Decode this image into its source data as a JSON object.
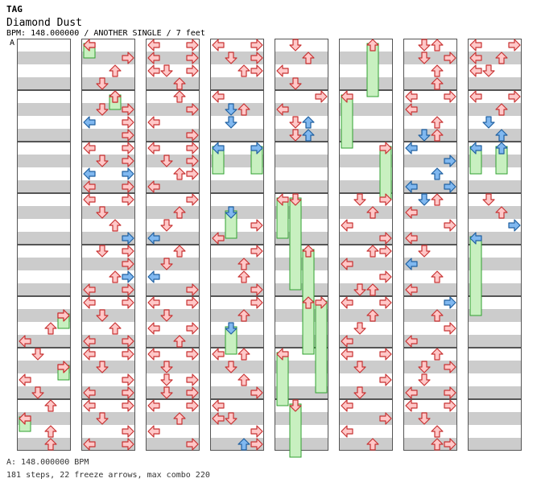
{
  "header": {
    "tag": "TAG",
    "title": "Diamond Dust",
    "subtitle": "BPM: 148.000000 / ANOTHER SINGLE / 7 feet"
  },
  "bpm_marker": "A",
  "footer": {
    "bpm_line": "A: 148.000000 BPM",
    "steps_line": "181 steps, 22 freeze arrows, max combo 220"
  },
  "colors": {
    "band_gray": "#cccccc",
    "arrow_red_fill": "#ffc8c8",
    "arrow_red_stroke": "#c83232",
    "arrow_blue_fill": "#80b8f0",
    "arrow_blue_stroke": "#2060a0",
    "freeze_fill": "#c8f0c0",
    "freeze_stroke": "#30a030"
  },
  "chart_data": {
    "type": "step-chart",
    "columns": 8,
    "measures_per_column": 8,
    "notes": [
      {
        "c": 0,
        "r": 21,
        "l": 3,
        "f": 1
      },
      {
        "c": 0,
        "r": 21,
        "l": 3
      },
      {
        "c": 0,
        "r": 22,
        "l": 2
      },
      {
        "c": 0,
        "r": 23,
        "l": 0
      },
      {
        "c": 0,
        "r": 24,
        "l": 1
      },
      {
        "c": 0,
        "r": 25,
        "l": 3,
        "f": 1
      },
      {
        "c": 0,
        "r": 25,
        "l": 3
      },
      {
        "c": 0,
        "r": 26,
        "l": 0
      },
      {
        "c": 0,
        "r": 27,
        "l": 1
      },
      {
        "c": 0,
        "r": 28,
        "l": 2
      },
      {
        "c": 0,
        "r": 29,
        "l": 0,
        "f": 1
      },
      {
        "c": 0,
        "r": 29,
        "l": 0
      },
      {
        "c": 0,
        "r": 30,
        "l": 2
      },
      {
        "c": 0,
        "r": 31,
        "l": 2
      },
      {
        "c": 1,
        "r": 0,
        "l": 0,
        "f": 1
      },
      {
        "c": 1,
        "r": 0,
        "l": 0
      },
      {
        "c": 1,
        "r": 1,
        "l": 3
      },
      {
        "c": 1,
        "r": 2,
        "l": 2
      },
      {
        "c": 1,
        "r": 3,
        "l": 1
      },
      {
        "c": 1,
        "r": 4,
        "l": 2,
        "f": 1
      },
      {
        "c": 1,
        "r": 4,
        "l": 2
      },
      {
        "c": 1,
        "r": 5,
        "l": 1
      },
      {
        "c": 1,
        "r": 5,
        "l": 3
      },
      {
        "c": 1,
        "r": 6,
        "l": 0,
        "b": 1
      },
      {
        "c": 1,
        "r": 6,
        "l": 3
      },
      {
        "c": 1,
        "r": 7,
        "l": 3
      },
      {
        "c": 1,
        "r": 8,
        "l": 0
      },
      {
        "c": 1,
        "r": 8,
        "l": 3
      },
      {
        "c": 1,
        "r": 9,
        "l": 1
      },
      {
        "c": 1,
        "r": 9,
        "l": 3
      },
      {
        "c": 1,
        "r": 10,
        "l": 0,
        "b": 1
      },
      {
        "c": 1,
        "r": 10,
        "l": 3,
        "b": 1
      },
      {
        "c": 1,
        "r": 11,
        "l": 0
      },
      {
        "c": 1,
        "r": 11,
        "l": 3
      },
      {
        "c": 1,
        "r": 12,
        "l": 0
      },
      {
        "c": 1,
        "r": 12,
        "l": 3
      },
      {
        "c": 1,
        "r": 13,
        "l": 1
      },
      {
        "c": 1,
        "r": 14,
        "l": 2
      },
      {
        "c": 1,
        "r": 15,
        "l": 3,
        "b": 1
      },
      {
        "c": 1,
        "r": 16,
        "l": 1
      },
      {
        "c": 1,
        "r": 16,
        "l": 3
      },
      {
        "c": 1,
        "r": 17,
        "l": 3
      },
      {
        "c": 1,
        "r": 18,
        "l": 2
      },
      {
        "c": 1,
        "r": 18,
        "l": 3,
        "b": 1
      },
      {
        "c": 1,
        "r": 19,
        "l": 0
      },
      {
        "c": 1,
        "r": 19,
        "l": 3
      },
      {
        "c": 1,
        "r": 20,
        "l": 0
      },
      {
        "c": 1,
        "r": 20,
        "l": 3
      },
      {
        "c": 1,
        "r": 21,
        "l": 1
      },
      {
        "c": 1,
        "r": 22,
        "l": 2
      },
      {
        "c": 1,
        "r": 23,
        "l": 0
      },
      {
        "c": 1,
        "r": 23,
        "l": 3
      },
      {
        "c": 1,
        "r": 24,
        "l": 0
      },
      {
        "c": 1,
        "r": 24,
        "l": 3
      },
      {
        "c": 1,
        "r": 25,
        "l": 1
      },
      {
        "c": 1,
        "r": 26,
        "l": 3
      },
      {
        "c": 1,
        "r": 27,
        "l": 0
      },
      {
        "c": 1,
        "r": 27,
        "l": 3
      },
      {
        "c": 1,
        "r": 28,
        "l": 0
      },
      {
        "c": 1,
        "r": 28,
        "l": 3
      },
      {
        "c": 1,
        "r": 29,
        "l": 1
      },
      {
        "c": 1,
        "r": 30,
        "l": 3
      },
      {
        "c": 1,
        "r": 31,
        "l": 0
      },
      {
        "c": 1,
        "r": 31,
        "l": 3
      },
      {
        "c": 2,
        "r": 0,
        "l": 0
      },
      {
        "c": 2,
        "r": 0,
        "l": 3
      },
      {
        "c": 2,
        "r": 1,
        "l": 0
      },
      {
        "c": 2,
        "r": 1,
        "l": 3
      },
      {
        "c": 2,
        "r": 2,
        "l": 0
      },
      {
        "c": 2,
        "r": 2,
        "l": 1
      },
      {
        "c": 2,
        "r": 2,
        "l": 3
      },
      {
        "c": 2,
        "r": 3,
        "l": 2
      },
      {
        "c": 2,
        "r": 4,
        "l": 2
      },
      {
        "c": 2,
        "r": 5,
        "l": 3
      },
      {
        "c": 2,
        "r": 6,
        "l": 0
      },
      {
        "c": 2,
        "r": 7,
        "l": 3
      },
      {
        "c": 2,
        "r": 8,
        "l": 0
      },
      {
        "c": 2,
        "r": 8,
        "l": 3
      },
      {
        "c": 2,
        "r": 9,
        "l": 1
      },
      {
        "c": 2,
        "r": 9,
        "l": 3
      },
      {
        "c": 2,
        "r": 10,
        "l": 2
      },
      {
        "c": 2,
        "r": 10,
        "l": 3
      },
      {
        "c": 2,
        "r": 11,
        "l": 0
      },
      {
        "c": 2,
        "r": 12,
        "l": 3
      },
      {
        "c": 2,
        "r": 13,
        "l": 2
      },
      {
        "c": 2,
        "r": 14,
        "l": 1
      },
      {
        "c": 2,
        "r": 15,
        "l": 0,
        "b": 1
      },
      {
        "c": 2,
        "r": 16,
        "l": 2
      },
      {
        "c": 2,
        "r": 17,
        "l": 1
      },
      {
        "c": 2,
        "r": 18,
        "l": 0,
        "b": 1
      },
      {
        "c": 2,
        "r": 19,
        "l": 3
      },
      {
        "c": 2,
        "r": 20,
        "l": 0
      },
      {
        "c": 2,
        "r": 20,
        "l": 3
      },
      {
        "c": 2,
        "r": 21,
        "l": 1
      },
      {
        "c": 2,
        "r": 22,
        "l": 0
      },
      {
        "c": 2,
        "r": 22,
        "l": 3
      },
      {
        "c": 2,
        "r": 23,
        "l": 2
      },
      {
        "c": 2,
        "r": 24,
        "l": 0
      },
      {
        "c": 2,
        "r": 24,
        "l": 3
      },
      {
        "c": 2,
        "r": 25,
        "l": 1
      },
      {
        "c": 2,
        "r": 26,
        "l": 1
      },
      {
        "c": 2,
        "r": 26,
        "l": 3
      },
      {
        "c": 2,
        "r": 27,
        "l": 1
      },
      {
        "c": 2,
        "r": 27,
        "l": 3
      },
      {
        "c": 2,
        "r": 28,
        "l": 0
      },
      {
        "c": 2,
        "r": 28,
        "l": 3
      },
      {
        "c": 2,
        "r": 29,
        "l": 2
      },
      {
        "c": 2,
        "r": 30,
        "l": 0
      },
      {
        "c": 2,
        "r": 31,
        "l": 3
      },
      {
        "c": 3,
        "r": 0,
        "l": 0
      },
      {
        "c": 3,
        "r": 0,
        "l": 3
      },
      {
        "c": 3,
        "r": 1,
        "l": 1
      },
      {
        "c": 3,
        "r": 1,
        "l": 3
      },
      {
        "c": 3,
        "r": 2,
        "l": 2
      },
      {
        "c": 3,
        "r": 2,
        "l": 3
      },
      {
        "c": 3,
        "r": 4,
        "l": 0
      },
      {
        "c": 3,
        "r": 5,
        "l": 2
      },
      {
        "c": 3,
        "r": 5,
        "l": 1,
        "b": 1
      },
      {
        "c": 3,
        "r": 6,
        "l": 1,
        "b": 1
      },
      {
        "c": 3,
        "r": 8,
        "l": 0,
        "f": 2,
        "b": 1
      },
      {
        "c": 3,
        "r": 8,
        "l": 3,
        "f": 2,
        "b": 1
      },
      {
        "c": 3,
        "r": 13,
        "l": 1,
        "f": 2,
        "b": 1
      },
      {
        "c": 3,
        "r": 14,
        "l": 3
      },
      {
        "c": 3,
        "r": 15,
        "l": 0
      },
      {
        "c": 3,
        "r": 16,
        "l": 3
      },
      {
        "c": 3,
        "r": 17,
        "l": 2
      },
      {
        "c": 3,
        "r": 18,
        "l": 2
      },
      {
        "c": 3,
        "r": 19,
        "l": 3
      },
      {
        "c": 3,
        "r": 20,
        "l": 3
      },
      {
        "c": 3,
        "r": 21,
        "l": 2
      },
      {
        "c": 3,
        "r": 22,
        "l": 1,
        "f": 2,
        "b": 1
      },
      {
        "c": 3,
        "r": 24,
        "l": 0
      },
      {
        "c": 3,
        "r": 24,
        "l": 2
      },
      {
        "c": 3,
        "r": 25,
        "l": 1
      },
      {
        "c": 3,
        "r": 26,
        "l": 2
      },
      {
        "c": 3,
        "r": 27,
        "l": 3
      },
      {
        "c": 3,
        "r": 28,
        "l": 0
      },
      {
        "c": 3,
        "r": 29,
        "l": 0
      },
      {
        "c": 3,
        "r": 29,
        "l": 1
      },
      {
        "c": 3,
        "r": 30,
        "l": 3
      },
      {
        "c": 3,
        "r": 31,
        "l": 2,
        "b": 1
      },
      {
        "c": 3,
        "r": 31,
        "l": 3
      },
      {
        "c": 4,
        "r": 0,
        "l": 1
      },
      {
        "c": 4,
        "r": 1,
        "l": 2
      },
      {
        "c": 4,
        "r": 2,
        "l": 0
      },
      {
        "c": 4,
        "r": 3,
        "l": 1
      },
      {
        "c": 4,
        "r": 4,
        "l": 3
      },
      {
        "c": 4,
        "r": 5,
        "l": 0
      },
      {
        "c": 4,
        "r": 6,
        "l": 1
      },
      {
        "c": 4,
        "r": 6,
        "l": 2,
        "b": 1
      },
      {
        "c": 4,
        "r": 7,
        "l": 1
      },
      {
        "c": 4,
        "r": 7,
        "l": 2,
        "b": 1
      },
      {
        "c": 4,
        "r": 12,
        "l": 0,
        "f": 3
      },
      {
        "c": 4,
        "r": 12,
        "l": 1,
        "f": 7
      },
      {
        "c": 4,
        "r": 16,
        "l": 2,
        "f": 4
      },
      {
        "c": 4,
        "r": 20,
        "l": 2,
        "f": 4
      },
      {
        "c": 4,
        "r": 20,
        "l": 3,
        "f": 7
      },
      {
        "c": 4,
        "r": 24,
        "l": 0,
        "f": 4
      },
      {
        "c": 4,
        "r": 28,
        "l": 1,
        "f": 4
      },
      {
        "c": 5,
        "r": 0,
        "l": 2,
        "f": 4
      },
      {
        "c": 5,
        "r": 4,
        "l": 0,
        "f": 4
      },
      {
        "c": 5,
        "r": 8,
        "l": 3,
        "f": 4
      },
      {
        "c": 5,
        "r": 12,
        "l": 1
      },
      {
        "c": 5,
        "r": 12,
        "l": 3
      },
      {
        "c": 5,
        "r": 13,
        "l": 2
      },
      {
        "c": 5,
        "r": 14,
        "l": 0
      },
      {
        "c": 5,
        "r": 15,
        "l": 3
      },
      {
        "c": 5,
        "r": 16,
        "l": 2
      },
      {
        "c": 5,
        "r": 16,
        "l": 3
      },
      {
        "c": 5,
        "r": 17,
        "l": 0
      },
      {
        "c": 5,
        "r": 18,
        "l": 3
      },
      {
        "c": 5,
        "r": 19,
        "l": 1
      },
      {
        "c": 5,
        "r": 19,
        "l": 2
      },
      {
        "c": 5,
        "r": 20,
        "l": 0
      },
      {
        "c": 5,
        "r": 20,
        "l": 3
      },
      {
        "c": 5,
        "r": 21,
        "l": 2
      },
      {
        "c": 5,
        "r": 22,
        "l": 1
      },
      {
        "c": 5,
        "r": 23,
        "l": 0
      },
      {
        "c": 5,
        "r": 24,
        "l": 0
      },
      {
        "c": 5,
        "r": 24,
        "l": 3
      },
      {
        "c": 5,
        "r": 25,
        "l": 1
      },
      {
        "c": 5,
        "r": 26,
        "l": 3
      },
      {
        "c": 5,
        "r": 27,
        "l": 1
      },
      {
        "c": 5,
        "r": 28,
        "l": 0
      },
      {
        "c": 5,
        "r": 29,
        "l": 3
      },
      {
        "c": 5,
        "r": 30,
        "l": 0
      },
      {
        "c": 5,
        "r": 31,
        "l": 2
      },
      {
        "c": 6,
        "r": 0,
        "l": 1
      },
      {
        "c": 6,
        "r": 0,
        "l": 2
      },
      {
        "c": 6,
        "r": 1,
        "l": 1
      },
      {
        "c": 6,
        "r": 1,
        "l": 3
      },
      {
        "c": 6,
        "r": 2,
        "l": 2
      },
      {
        "c": 6,
        "r": 3,
        "l": 2
      },
      {
        "c": 6,
        "r": 4,
        "l": 0
      },
      {
        "c": 6,
        "r": 4,
        "l": 3
      },
      {
        "c": 6,
        "r": 5,
        "l": 0
      },
      {
        "c": 6,
        "r": 6,
        "l": 2
      },
      {
        "c": 6,
        "r": 7,
        "l": 2
      },
      {
        "c": 6,
        "r": 7,
        "l": 1,
        "b": 1
      },
      {
        "c": 6,
        "r": 8,
        "l": 0,
        "b": 1
      },
      {
        "c": 6,
        "r": 9,
        "l": 3,
        "b": 1
      },
      {
        "c": 6,
        "r": 10,
        "l": 2,
        "b": 1
      },
      {
        "c": 6,
        "r": 11,
        "l": 0,
        "b": 1
      },
      {
        "c": 6,
        "r": 11,
        "l": 3,
        "b": 1
      },
      {
        "c": 6,
        "r": 12,
        "l": 1,
        "b": 1
      },
      {
        "c": 6,
        "r": 12,
        "l": 2
      },
      {
        "c": 6,
        "r": 13,
        "l": 0
      },
      {
        "c": 6,
        "r": 14,
        "l": 3
      },
      {
        "c": 6,
        "r": 15,
        "l": 0
      },
      {
        "c": 6,
        "r": 16,
        "l": 1
      },
      {
        "c": 6,
        "r": 17,
        "l": 0,
        "b": 1
      },
      {
        "c": 6,
        "r": 18,
        "l": 2
      },
      {
        "c": 6,
        "r": 19,
        "l": 0
      },
      {
        "c": 6,
        "r": 20,
        "l": 3,
        "b": 1
      },
      {
        "c": 6,
        "r": 21,
        "l": 2
      },
      {
        "c": 6,
        "r": 22,
        "l": 3
      },
      {
        "c": 6,
        "r": 23,
        "l": 0
      },
      {
        "c": 6,
        "r": 24,
        "l": 2
      },
      {
        "c": 6,
        "r": 25,
        "l": 1
      },
      {
        "c": 6,
        "r": 25,
        "l": 3
      },
      {
        "c": 6,
        "r": 26,
        "l": 1
      },
      {
        "c": 6,
        "r": 27,
        "l": 0
      },
      {
        "c": 6,
        "r": 27,
        "l": 3
      },
      {
        "c": 6,
        "r": 28,
        "l": 0
      },
      {
        "c": 6,
        "r": 28,
        "l": 3
      },
      {
        "c": 6,
        "r": 29,
        "l": 1
      },
      {
        "c": 6,
        "r": 30,
        "l": 2
      },
      {
        "c": 6,
        "r": 31,
        "l": 2
      },
      {
        "c": 6,
        "r": 31,
        "l": 3
      },
      {
        "c": 7,
        "r": 0,
        "l": 0
      },
      {
        "c": 7,
        "r": 0,
        "l": 3
      },
      {
        "c": 7,
        "r": 1,
        "l": 0
      },
      {
        "c": 7,
        "r": 1,
        "l": 2
      },
      {
        "c": 7,
        "r": 2,
        "l": 0
      },
      {
        "c": 7,
        "r": 2,
        "l": 1
      },
      {
        "c": 7,
        "r": 4,
        "l": 0
      },
      {
        "c": 7,
        "r": 4,
        "l": 3
      },
      {
        "c": 7,
        "r": 5,
        "l": 2
      },
      {
        "c": 7,
        "r": 6,
        "l": 1,
        "b": 1
      },
      {
        "c": 7,
        "r": 7,
        "l": 2,
        "b": 1
      },
      {
        "c": 7,
        "r": 8,
        "l": 0,
        "f": 2,
        "b": 1
      },
      {
        "c": 7,
        "r": 8,
        "l": 2,
        "f": 2,
        "b": 1
      },
      {
        "c": 7,
        "r": 12,
        "l": 1
      },
      {
        "c": 7,
        "r": 13,
        "l": 2
      },
      {
        "c": 7,
        "r": 14,
        "l": 3,
        "b": 1
      },
      {
        "c": 7,
        "r": 15,
        "l": 0,
        "f": 6,
        "b": 1
      }
    ]
  }
}
